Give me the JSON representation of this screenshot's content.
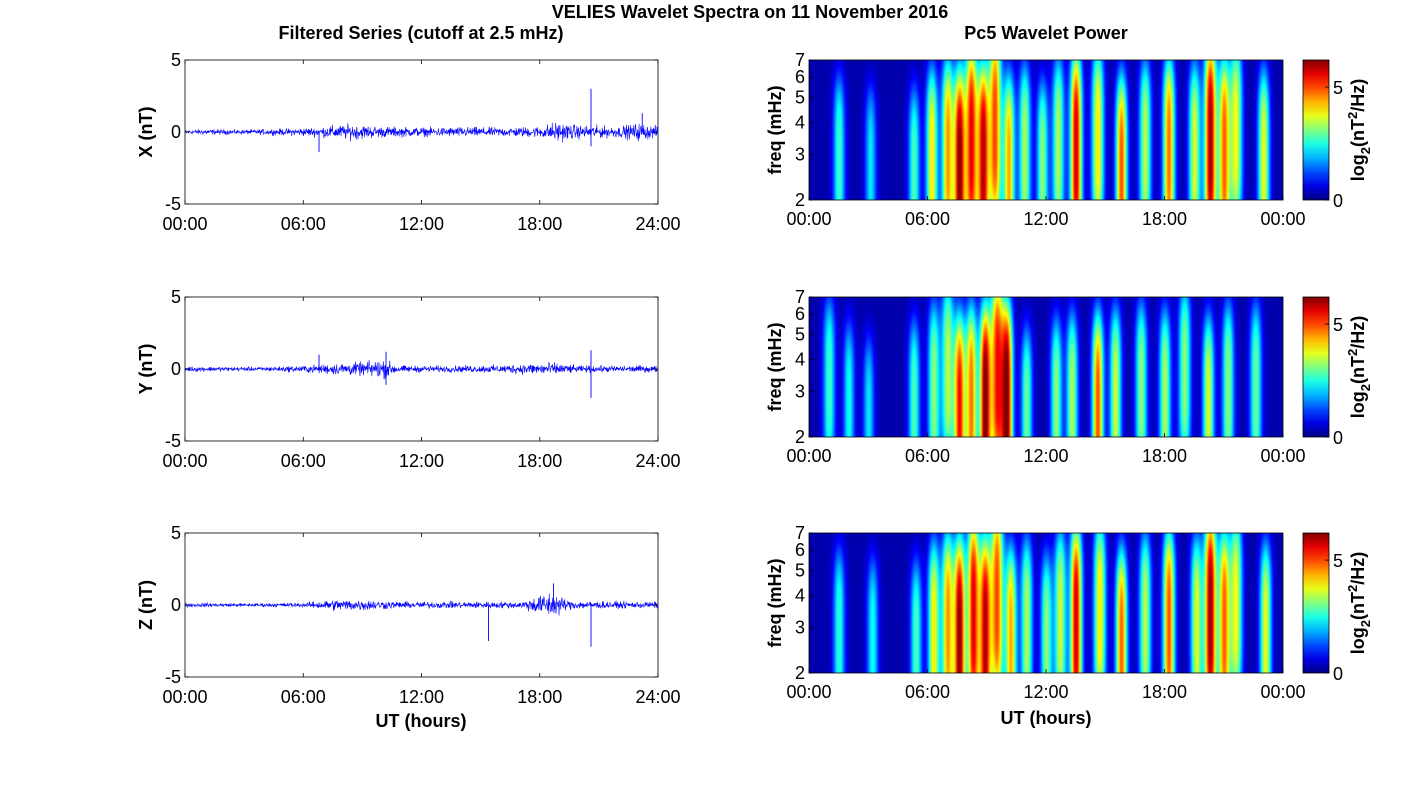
{
  "figure": {
    "title": "VELIES Wavelet Spectra on 11 November 2016",
    "left_column_title": "Filtered Series (cutoff at 2.5 mHz)",
    "right_column_title": "Pc5 Wavelet Power",
    "x_axis_label": "UT (hours)"
  },
  "colors": {
    "series_line": "#0000ff",
    "axes": "#000000",
    "heatmap_background": "#00008f",
    "colormap": "jet"
  },
  "chart_data": [
    {
      "type": "line",
      "component": "X",
      "ylabel": "X (nT)",
      "xlim": [
        0,
        24
      ],
      "ylim": [
        -5,
        5
      ],
      "xticks": [
        "00:00",
        "06:00",
        "12:00",
        "18:00",
        "24:00"
      ],
      "yticks": [
        "-5",
        "0",
        "5"
      ],
      "grid": false,
      "envelope_amplitude_nT": [
        {
          "t": 0,
          "a": 0.2
        },
        {
          "t": 1,
          "a": 0.25
        },
        {
          "t": 3,
          "a": 0.2
        },
        {
          "t": 5,
          "a": 0.3
        },
        {
          "t": 6.5,
          "a": 0.4
        },
        {
          "t": 7.5,
          "a": 0.6
        },
        {
          "t": 8.5,
          "a": 0.7
        },
        {
          "t": 10,
          "a": 0.5
        },
        {
          "t": 12,
          "a": 0.4
        },
        {
          "t": 14,
          "a": 0.45
        },
        {
          "t": 16,
          "a": 0.4
        },
        {
          "t": 18,
          "a": 0.5
        },
        {
          "t": 18.8,
          "a": 0.9
        },
        {
          "t": 20,
          "a": 0.6
        },
        {
          "t": 22,
          "a": 0.5
        },
        {
          "t": 23,
          "a": 0.8
        },
        {
          "t": 24,
          "a": 0.5
        }
      ],
      "spikes": [
        {
          "t": 6.8,
          "v": -1.4
        },
        {
          "t": 20.6,
          "v": 3.0
        },
        {
          "t": 20.6,
          "v": -1.0
        },
        {
          "t": 23.2,
          "v": 1.3
        }
      ]
    },
    {
      "type": "line",
      "component": "Y",
      "ylabel": "Y (nT)",
      "xlim": [
        0,
        24
      ],
      "ylim": [
        -5,
        5
      ],
      "xticks": [
        "00:00",
        "06:00",
        "12:00",
        "18:00",
        "24:00"
      ],
      "yticks": [
        "-5",
        "0",
        "5"
      ],
      "grid": false,
      "envelope_amplitude_nT": [
        {
          "t": 0,
          "a": 0.25
        },
        {
          "t": 2,
          "a": 0.2
        },
        {
          "t": 4,
          "a": 0.2
        },
        {
          "t": 6,
          "a": 0.3
        },
        {
          "t": 7.5,
          "a": 0.5
        },
        {
          "t": 9,
          "a": 0.6
        },
        {
          "t": 10,
          "a": 0.9
        },
        {
          "t": 11,
          "a": 0.3
        },
        {
          "t": 14,
          "a": 0.3
        },
        {
          "t": 16,
          "a": 0.35
        },
        {
          "t": 18.5,
          "a": 0.6
        },
        {
          "t": 20,
          "a": 0.3
        },
        {
          "t": 24,
          "a": 0.3
        }
      ],
      "spikes": [
        {
          "t": 6.8,
          "v": 1.0
        },
        {
          "t": 10.2,
          "v": 1.2
        },
        {
          "t": 10.2,
          "v": -1.1
        },
        {
          "t": 20.6,
          "v": 1.3
        },
        {
          "t": 20.6,
          "v": -2.0
        }
      ]
    },
    {
      "type": "line",
      "component": "Z",
      "ylabel": "Z (nT)",
      "xlim": [
        0,
        24
      ],
      "ylim": [
        -5,
        5
      ],
      "xticks": [
        "00:00",
        "06:00",
        "12:00",
        "18:00",
        "24:00"
      ],
      "yticks": [
        "-5",
        "0",
        "5"
      ],
      "grid": false,
      "envelope_amplitude_nT": [
        {
          "t": 0,
          "a": 0.2
        },
        {
          "t": 3,
          "a": 0.15
        },
        {
          "t": 6,
          "a": 0.2
        },
        {
          "t": 7.5,
          "a": 0.5
        },
        {
          "t": 9,
          "a": 0.5
        },
        {
          "t": 11,
          "a": 0.3
        },
        {
          "t": 14,
          "a": 0.3
        },
        {
          "t": 17,
          "a": 0.3
        },
        {
          "t": 18.6,
          "a": 1.2
        },
        {
          "t": 19.5,
          "a": 0.4
        },
        {
          "t": 22,
          "a": 0.3
        },
        {
          "t": 24,
          "a": 0.3
        }
      ],
      "spikes": [
        {
          "t": 15.4,
          "v": -2.5
        },
        {
          "t": 18.7,
          "v": 1.5
        },
        {
          "t": 20.6,
          "v": -2.9
        }
      ]
    },
    {
      "type": "heatmap",
      "component": "X",
      "ylabel": "freq (mHz)",
      "xlim": [
        0,
        24
      ],
      "ylim_mHz": [
        2,
        7
      ],
      "y_scale": "log",
      "xticks": [
        "00:00",
        "06:00",
        "12:00",
        "18:00",
        "00:00"
      ],
      "yticks": [
        "2",
        "3",
        "4",
        "5",
        "6",
        "7"
      ],
      "colorbar": {
        "label": "log2(nT2/Hz)",
        "label_base": "log",
        "label_sub": "2",
        "label_open": "(nT",
        "label_sup": "2",
        "label_close": "/Hz)",
        "range": [
          0,
          6.2
        ],
        "ticks": [
          "0",
          "5"
        ]
      },
      "bursts": [
        {
          "t": 1.5,
          "f": 2.8,
          "p": 2.5
        },
        {
          "t": 3.1,
          "f": 2.6,
          "p": 2.0
        },
        {
          "t": 5.3,
          "f": 2.5,
          "p": 2.6
        },
        {
          "t": 6.2,
          "f": 2.8,
          "p": 3.8
        },
        {
          "t": 7.0,
          "f": 3.0,
          "p": 4.3
        },
        {
          "t": 7.6,
          "f": 2.5,
          "p": 6.0
        },
        {
          "t": 8.2,
          "f": 3.3,
          "p": 5.3
        },
        {
          "t": 8.8,
          "f": 2.7,
          "p": 5.6
        },
        {
          "t": 9.4,
          "f": 3.8,
          "p": 4.8
        },
        {
          "t": 10.1,
          "f": 2.6,
          "p": 4.2
        },
        {
          "t": 10.9,
          "f": 3.0,
          "p": 3.2
        },
        {
          "t": 11.8,
          "f": 2.6,
          "p": 3.0
        },
        {
          "t": 12.6,
          "f": 3.2,
          "p": 3.2
        },
        {
          "t": 13.5,
          "f": 3.0,
          "p": 5.6
        },
        {
          "t": 14.6,
          "f": 3.4,
          "p": 3.8
        },
        {
          "t": 15.8,
          "f": 2.5,
          "p": 4.8
        },
        {
          "t": 17.0,
          "f": 3.1,
          "p": 3.3
        },
        {
          "t": 18.2,
          "f": 3.0,
          "p": 4.6
        },
        {
          "t": 19.5,
          "f": 3.0,
          "p": 3.5
        },
        {
          "t": 20.3,
          "f": 3.3,
          "p": 5.9
        },
        {
          "t": 21.0,
          "f": 3.0,
          "p": 4.6
        },
        {
          "t": 21.6,
          "f": 3.6,
          "p": 3.6
        },
        {
          "t": 23.0,
          "f": 2.8,
          "p": 3.6
        }
      ]
    },
    {
      "type": "heatmap",
      "component": "Y",
      "ylabel": "freq (mHz)",
      "xlim": [
        0,
        24
      ],
      "ylim_mHz": [
        2,
        7
      ],
      "y_scale": "log",
      "xticks": [
        "00:00",
        "06:00",
        "12:00",
        "18:00",
        "00:00"
      ],
      "yticks": [
        "2",
        "3",
        "4",
        "5",
        "6",
        "7"
      ],
      "colorbar": {
        "label": "log2(nT2/Hz)",
        "label_base": "log",
        "label_sub": "2",
        "label_open": "(nT",
        "label_sup": "2",
        "label_close": "/Hz)",
        "range": [
          0,
          6.2
        ],
        "ticks": [
          "0",
          "5"
        ]
      },
      "bursts": [
        {
          "t": 1.0,
          "f": 3.2,
          "p": 2.5
        },
        {
          "t": 2.0,
          "f": 2.6,
          "p": 2.2
        },
        {
          "t": 3.0,
          "f": 2.3,
          "p": 2.0
        },
        {
          "t": 5.3,
          "f": 2.6,
          "p": 2.6
        },
        {
          "t": 6.3,
          "f": 3.0,
          "p": 3.0
        },
        {
          "t": 7.0,
          "f": 3.6,
          "p": 3.2
        },
        {
          "t": 7.6,
          "f": 2.4,
          "p": 5.2
        },
        {
          "t": 8.2,
          "f": 2.7,
          "p": 4.5
        },
        {
          "t": 8.9,
          "f": 2.5,
          "p": 6.2
        },
        {
          "t": 9.5,
          "f": 3.5,
          "p": 5.0
        },
        {
          "t": 10.0,
          "f": 2.6,
          "p": 6.0
        },
        {
          "t": 11.0,
          "f": 2.4,
          "p": 2.8
        },
        {
          "t": 12.5,
          "f": 2.6,
          "p": 3.0
        },
        {
          "t": 13.3,
          "f": 2.7,
          "p": 3.2
        },
        {
          "t": 14.6,
          "f": 2.5,
          "p": 4.8
        },
        {
          "t": 15.5,
          "f": 2.8,
          "p": 3.4
        },
        {
          "t": 16.8,
          "f": 3.0,
          "p": 3.0
        },
        {
          "t": 18.0,
          "f": 2.8,
          "p": 3.2
        },
        {
          "t": 19.0,
          "f": 3.5,
          "p": 3.0
        },
        {
          "t": 20.2,
          "f": 2.6,
          "p": 3.5
        },
        {
          "t": 21.2,
          "f": 3.0,
          "p": 3.0
        },
        {
          "t": 22.6,
          "f": 3.0,
          "p": 2.8
        }
      ]
    },
    {
      "type": "heatmap",
      "component": "Z",
      "ylabel": "freq (mHz)",
      "xlim": [
        0,
        24
      ],
      "ylim_mHz": [
        2,
        7
      ],
      "y_scale": "log",
      "xticks": [
        "00:00",
        "06:00",
        "12:00",
        "18:00",
        "00:00"
      ],
      "yticks": [
        "2",
        "3",
        "4",
        "5",
        "6",
        "7"
      ],
      "colorbar": {
        "label": "log2(nT2/Hz)",
        "label_base": "log",
        "label_sub": "2",
        "label_open": "(nT",
        "label_sup": "2",
        "label_close": "/Hz)",
        "range": [
          0,
          6.2
        ],
        "ticks": [
          "0",
          "5"
        ]
      },
      "bursts": [
        {
          "t": 1.5,
          "f": 2.8,
          "p": 2.4
        },
        {
          "t": 3.2,
          "f": 2.6,
          "p": 2.2
        },
        {
          "t": 5.4,
          "f": 2.5,
          "p": 2.6
        },
        {
          "t": 6.3,
          "f": 2.8,
          "p": 3.8
        },
        {
          "t": 7.0,
          "f": 3.0,
          "p": 4.3
        },
        {
          "t": 7.6,
          "f": 2.6,
          "p": 6.0
        },
        {
          "t": 8.3,
          "f": 3.3,
          "p": 5.4
        },
        {
          "t": 8.9,
          "f": 2.7,
          "p": 5.6
        },
        {
          "t": 9.5,
          "f": 3.8,
          "p": 4.8
        },
        {
          "t": 10.2,
          "f": 2.6,
          "p": 4.2
        },
        {
          "t": 11.0,
          "f": 3.0,
          "p": 3.2
        },
        {
          "t": 12.0,
          "f": 2.6,
          "p": 3.0
        },
        {
          "t": 12.7,
          "f": 3.2,
          "p": 3.4
        },
        {
          "t": 13.5,
          "f": 3.0,
          "p": 5.6
        },
        {
          "t": 14.7,
          "f": 3.4,
          "p": 3.8
        },
        {
          "t": 15.8,
          "f": 2.5,
          "p": 4.7
        },
        {
          "t": 17.0,
          "f": 3.1,
          "p": 3.3
        },
        {
          "t": 18.2,
          "f": 3.0,
          "p": 4.8
        },
        {
          "t": 19.6,
          "f": 3.0,
          "p": 3.5
        },
        {
          "t": 20.3,
          "f": 3.3,
          "p": 6.0
        },
        {
          "t": 21.0,
          "f": 3.0,
          "p": 4.6
        },
        {
          "t": 21.6,
          "f": 3.6,
          "p": 3.6
        },
        {
          "t": 23.1,
          "f": 2.8,
          "p": 3.6
        }
      ]
    }
  ]
}
